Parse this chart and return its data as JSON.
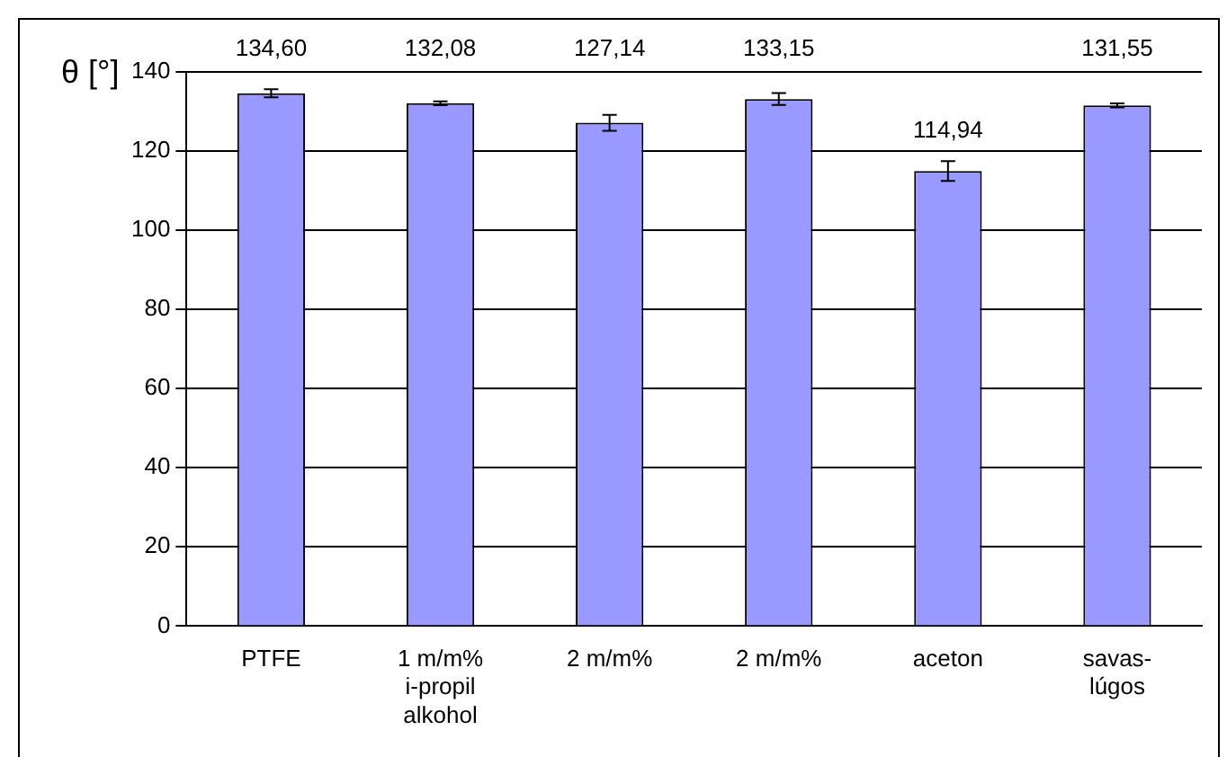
{
  "chart_data": {
    "type": "bar",
    "ylabel": "θ [°]",
    "categories": [
      "PTFE",
      "1 m/m% i-propil alkohol",
      "2 m/m%",
      "2 m/m%",
      "aceton",
      "savas-lúgos"
    ],
    "values": [
      134.6,
      132.08,
      127.14,
      133.15,
      114.94,
      131.55
    ],
    "errors": [
      1,
      0.5,
      2,
      1.5,
      2.5,
      0.5
    ],
    "value_labels": [
      "134,60",
      "132,08",
      "127,14",
      "133,15",
      "114,94",
      "131,55"
    ],
    "color": "#9999ff",
    "ylim": [
      0,
      140
    ],
    "yticks": [
      0,
      20,
      40,
      60,
      80,
      100,
      120,
      140
    ],
    "grid": "y",
    "legend": false
  }
}
